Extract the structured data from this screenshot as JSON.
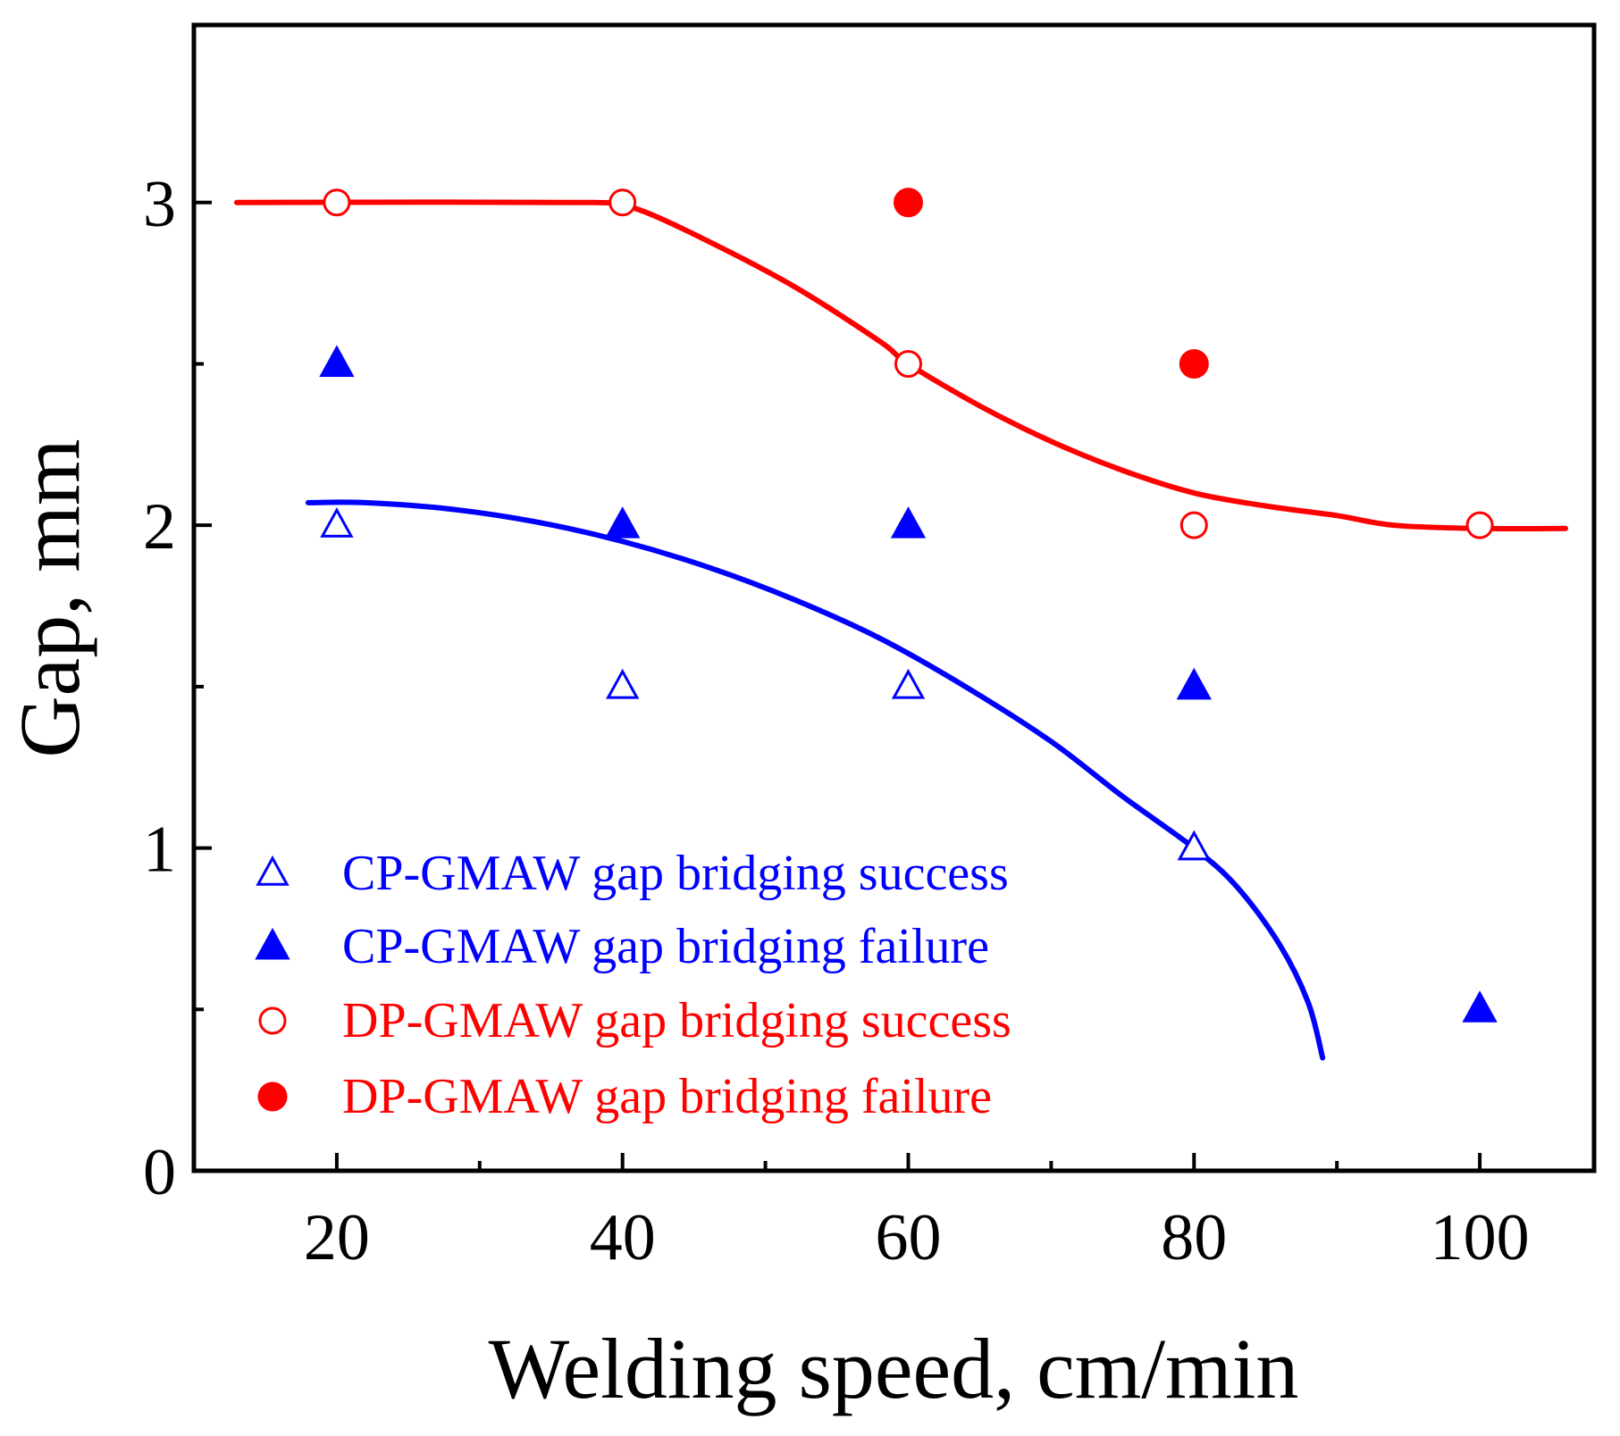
{
  "chart_data": {
    "type": "scatter",
    "title": "",
    "xlabel": "Welding speed, cm/min",
    "ylabel": "Gap, mm",
    "xlim": [
      10,
      108
    ],
    "ylim": [
      0,
      3.55
    ],
    "x_major_ticks": [
      20,
      40,
      60,
      80,
      100
    ],
    "x_tick_labels": [
      "20",
      "40",
      "60",
      "80",
      "100"
    ],
    "x_minor_ticks": [
      30,
      50,
      70,
      90
    ],
    "y_major_ticks": [
      0,
      1,
      2,
      3
    ],
    "y_tick_labels": [
      "0",
      "1",
      "2",
      "3"
    ],
    "y_minor_ticks": [
      0.5,
      1.5,
      2.5
    ],
    "grid": false,
    "legend_position": "bottom-left",
    "series": [
      {
        "name": "CP-GMAW gap bridging success",
        "marker": "triangle-open",
        "color": "#0000ff",
        "points": [
          [
            20,
            2.0
          ],
          [
            40,
            1.5
          ],
          [
            60,
            1.5
          ],
          [
            80,
            1.0
          ]
        ]
      },
      {
        "name": "CP-GMAW gap bridging failure",
        "marker": "triangle-filled",
        "color": "#0000ff",
        "points": [
          [
            20,
            2.5
          ],
          [
            40,
            2.0
          ],
          [
            60,
            2.0
          ],
          [
            80,
            1.5
          ],
          [
            100,
            0.5
          ]
        ]
      },
      {
        "name": "DP-GMAW gap bridging success",
        "marker": "circle-open",
        "color": "#ff0000",
        "points": [
          [
            20,
            3.0
          ],
          [
            40,
            3.0
          ],
          [
            60,
            2.5
          ],
          [
            80,
            2.0
          ],
          [
            100,
            2.0
          ]
        ]
      },
      {
        "name": "DP-GMAW gap bridging failure",
        "marker": "circle-filled",
        "color": "#ff0000",
        "points": [
          [
            60,
            3.0
          ],
          [
            80,
            2.5
          ]
        ]
      }
    ],
    "boundary_lines": [
      {
        "color": "#ff0000",
        "points": [
          [
            13,
            3.0
          ],
          [
            38,
            3.0
          ],
          [
            41,
            2.98
          ],
          [
            46,
            2.88
          ],
          [
            52,
            2.74
          ],
          [
            58,
            2.57
          ],
          [
            60,
            2.5
          ],
          [
            65,
            2.37
          ],
          [
            70,
            2.26
          ],
          [
            75,
            2.17
          ],
          [
            80,
            2.1
          ],
          [
            85,
            2.06
          ],
          [
            90,
            2.03
          ],
          [
            94,
            2.0
          ],
          [
            100,
            1.99
          ],
          [
            106,
            1.99
          ]
        ]
      },
      {
        "color": "#0000ff",
        "points": [
          [
            18,
            2.07
          ],
          [
            22,
            2.07
          ],
          [
            28,
            2.05
          ],
          [
            34,
            2.01
          ],
          [
            40,
            1.95
          ],
          [
            46,
            1.87
          ],
          [
            52,
            1.77
          ],
          [
            58,
            1.65
          ],
          [
            64,
            1.5
          ],
          [
            70,
            1.33
          ],
          [
            75,
            1.16
          ],
          [
            80,
            1.0
          ],
          [
            83,
            0.88
          ],
          [
            86,
            0.7
          ],
          [
            88,
            0.52
          ],
          [
            89,
            0.35
          ]
        ]
      }
    ]
  }
}
